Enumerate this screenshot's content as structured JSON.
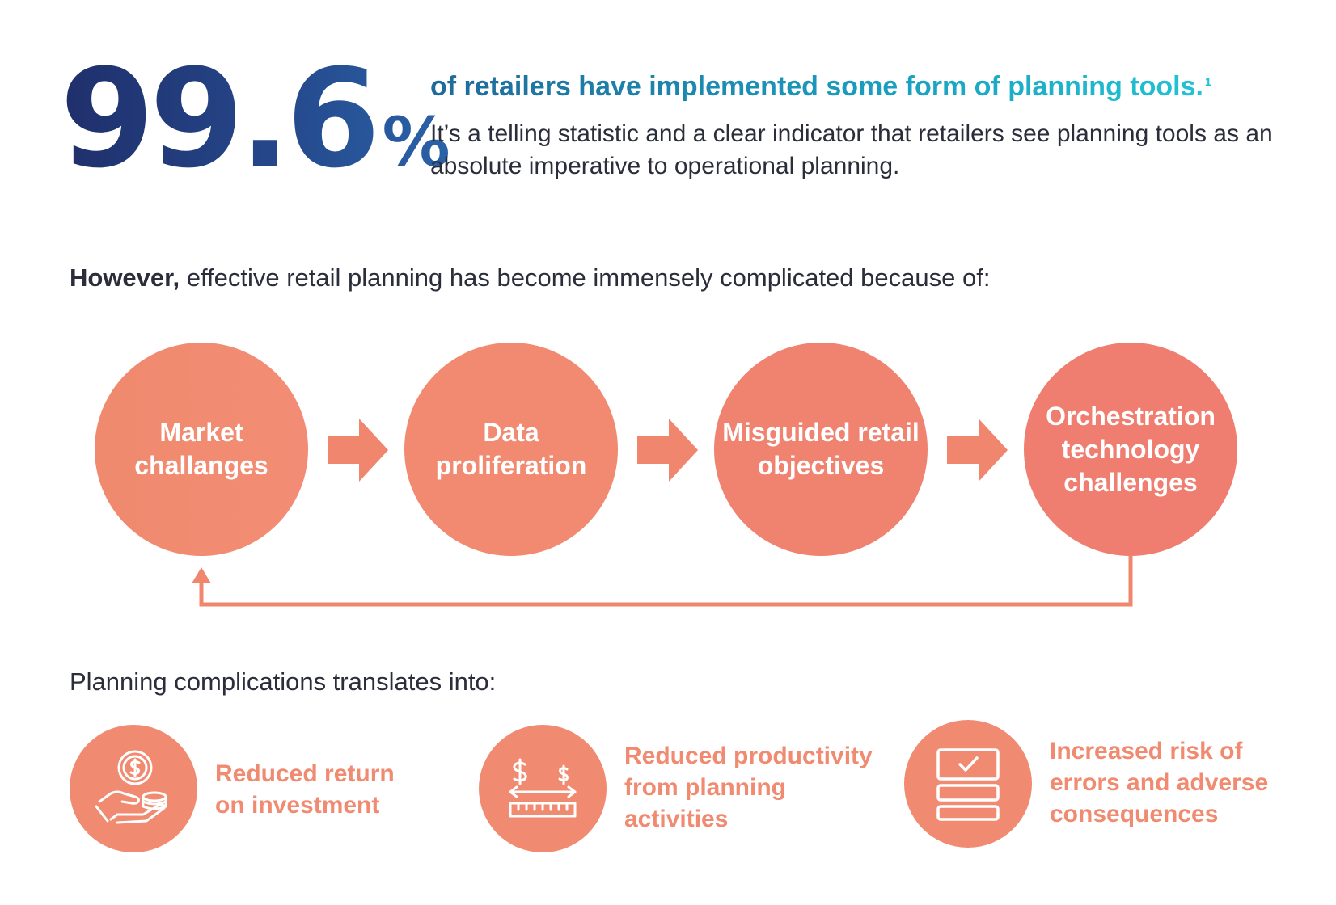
{
  "stat": {
    "number": "99.6",
    "percent": "%",
    "headline": "of retailers have implemented some form of planning tools.",
    "footnote": "1",
    "body": "It’s a telling statistic and a clear indicator that retailers see planning tools as an absolute imperative to operational planning."
  },
  "complication": {
    "lead_bold": "However,",
    "lead_rest": " effective retail planning has become immensely complicated because of:",
    "cycle": [
      {
        "label": "Market challanges"
      },
      {
        "label": "Data proliferation"
      },
      {
        "label": "Misguided retail objectives"
      },
      {
        "label": "Orchestration technology challenges"
      }
    ]
  },
  "outcomes": {
    "intro": "Planning complications translates into:",
    "items": [
      {
        "label": "Reduced return on investment",
        "icon": "hand-coins-icon"
      },
      {
        "label": "Reduced productivity from planning activities",
        "icon": "dollar-ruler-icon"
      },
      {
        "label": "Increased risk of errors and adverse consequences",
        "icon": "checklist-stack-icon"
      }
    ]
  },
  "colors": {
    "navy": "#1f2f6b",
    "teal": "#1aa0c0",
    "coral": "#f08a70",
    "text": "#2b2d3a"
  }
}
